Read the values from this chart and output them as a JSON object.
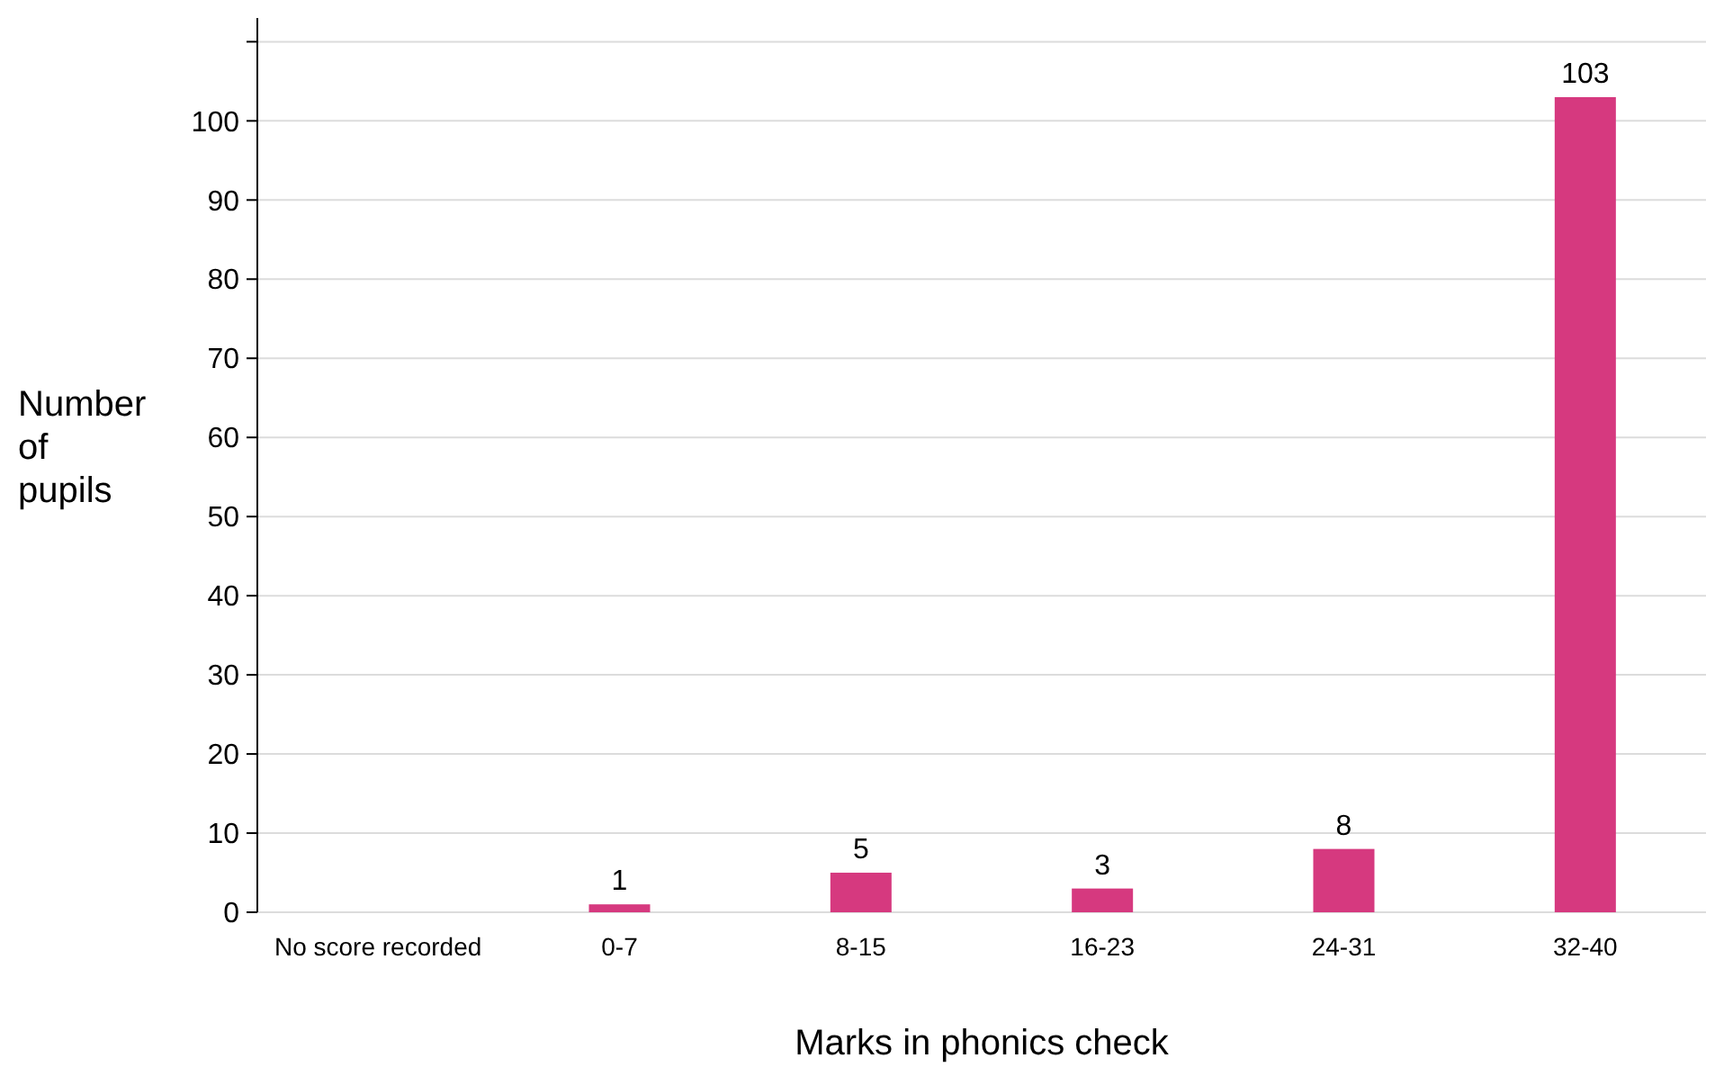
{
  "chart_data": {
    "type": "bar",
    "xlabel": "Marks in phonics check",
    "ylabel": "Number of pupils",
    "categories": [
      "No score recorded",
      "0-7",
      "8-15",
      "16-23",
      "24-31",
      "32-40"
    ],
    "values": [
      0,
      1,
      5,
      3,
      8,
      103
    ],
    "value_labels": [
      null,
      "1",
      "5",
      "3",
      "8",
      "103"
    ],
    "color": "#d6397f",
    "ylim": [
      0,
      113
    ],
    "yticks": [
      0,
      10,
      20,
      30,
      40,
      50,
      60,
      70,
      80,
      90,
      100,
      {
        "value": 110,
        "label": null
      }
    ],
    "grid": "y"
  }
}
